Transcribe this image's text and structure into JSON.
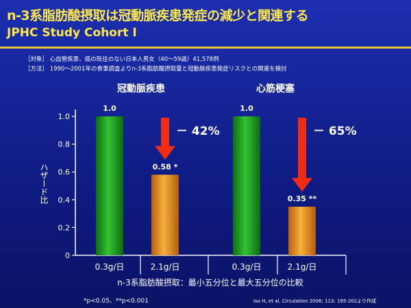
{
  "header": {
    "title": "n-3系脂肪酸摂取は冠動脈疾患発症の減少と関連する",
    "subtitle": "JPHC Study Cohort I"
  },
  "notes": [
    "［対象］ 心血管疾患、癌の既往のない日本人男女（40～59歳）41,578例",
    "［方法］ 1990～2001年の食事調査よりn-3系脂肪酸摂取量と冠動脈疾患発症リスクとの関連を検討"
  ],
  "footnote": "*p<0.05、**p<0.001",
  "citation": "Iso H, et al. Circulation 2006; 113: 195-202より作成",
  "colors": {
    "high_bar": "#22a622",
    "low_bar": "#f09a2a",
    "arrow": "#ee2d14",
    "title": "#ffe94a"
  },
  "chart_data": {
    "type": "bar",
    "ylabel": "ハザード比",
    "xlabel": "n-3系脂肪酸摂取：最小五分位と最大五分位の比較",
    "ylim": [
      0,
      1.0
    ],
    "yticks": [
      "0",
      "0.2",
      "0.4",
      "0.6",
      "0.8",
      "1.0"
    ],
    "ytick_values": [
      0,
      0.2,
      0.4,
      0.6,
      0.8,
      1.0
    ],
    "groups": [
      {
        "name": "冠動脈疾患",
        "reduction_label": "－ 42%",
        "bars": [
          {
            "category": "0.3g/日",
            "value": 1.0,
            "label": "1.0",
            "color": "high_bar"
          },
          {
            "category": "2.1g/日",
            "value": 0.58,
            "label": "0.58 *",
            "color": "low_bar"
          }
        ]
      },
      {
        "name": "心筋梗塞",
        "reduction_label": "－ 65%",
        "bars": [
          {
            "category": "0.3g/日",
            "value": 1.0,
            "label": "1.0",
            "color": "high_bar"
          },
          {
            "category": "2.1g/日",
            "value": 0.35,
            "label": "0.35 **",
            "color": "low_bar"
          }
        ]
      }
    ]
  }
}
